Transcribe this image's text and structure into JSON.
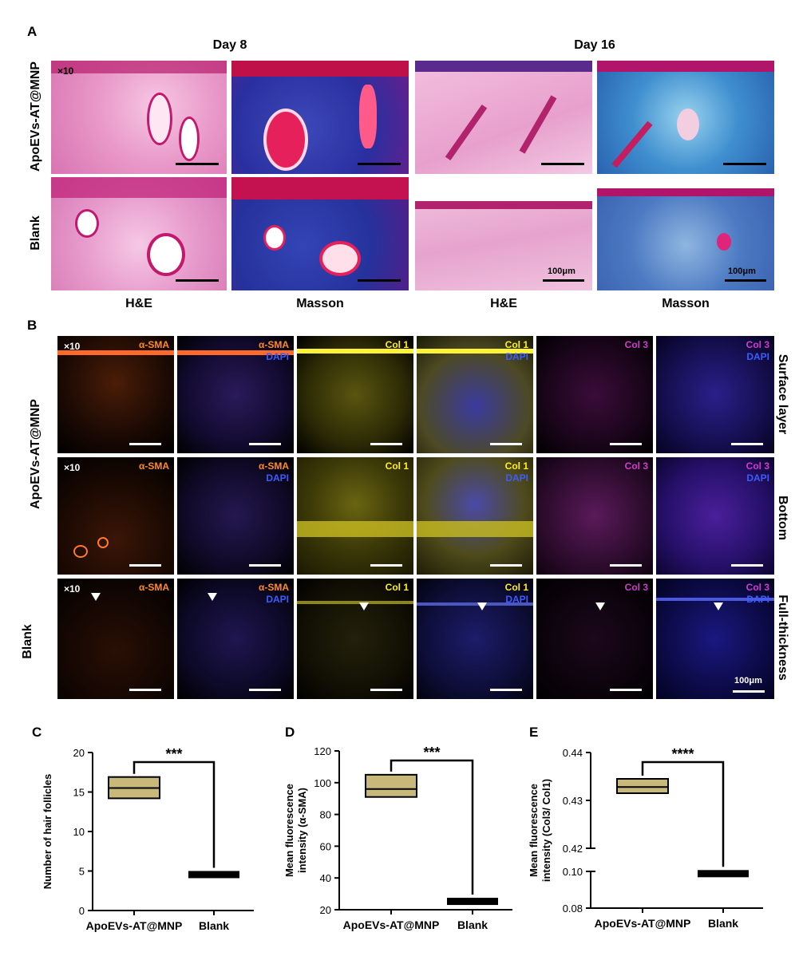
{
  "panelA": {
    "letter": "A",
    "day_headers": [
      "Day 8",
      "Day 16"
    ],
    "row_labels": [
      "ApoEVs-AT@MNP",
      "Blank"
    ],
    "col_labels": [
      "H&E",
      "Masson",
      "H&E",
      "Masson"
    ],
    "magnification": "×10",
    "scale_bar": "100μm"
  },
  "panelB": {
    "letter": "B",
    "magnification": "×10",
    "row_labels": [
      "ApoEVs-AT@MNP",
      "Blank"
    ],
    "side_labels": [
      "Surface layer",
      "Bottom",
      "Full-thickness"
    ],
    "channels": {
      "asma": "α-SMA",
      "col1": "Col 1",
      "col3": "Col 3",
      "dapi": "DAPI"
    },
    "scale_bar": "100μm",
    "colors": {
      "asma": "#ff8a2a",
      "col1": "#ffee22",
      "col3": "#d23ad2",
      "dapi": "#3d5cff"
    }
  },
  "chart_data": [
    {
      "panel": "C",
      "type": "box",
      "categories": [
        "ApoEVs-AT@MNP",
        "Blank"
      ],
      "ylabel": "Number of hair follicles",
      "ylim": [
        0,
        20
      ],
      "yticks": [
        "0",
        "5",
        "10",
        "15",
        "20"
      ],
      "boxes": [
        {
          "category": "ApoEVs-AT@MNP",
          "q1": 14.2,
          "median": 15.5,
          "q3": 16.9,
          "color": "#c8b87a"
        },
        {
          "category": "Blank",
          "q1": 4.2,
          "median": 4.6,
          "q3": 5.0,
          "color": "#000000"
        }
      ],
      "significance": "***"
    },
    {
      "panel": "D",
      "type": "box",
      "categories": [
        "ApoEVs-AT@MNP",
        "Blank"
      ],
      "ylabel": [
        "Mean fluorescence",
        "intensity (α-SMA)"
      ],
      "ylim": [
        20,
        120
      ],
      "yticks": [
        "20",
        "40",
        "60",
        "80",
        "100",
        "120"
      ],
      "boxes": [
        {
          "category": "ApoEVs-AT@MNP",
          "q1": 91,
          "median": 96,
          "q3": 105,
          "color": "#c8b87a"
        },
        {
          "category": "Blank",
          "q1": 24.5,
          "median": 25.5,
          "q3": 27,
          "color": "#000000"
        }
      ],
      "significance": "***"
    },
    {
      "panel": "E",
      "type": "box",
      "categories": [
        "ApoEVs-AT@MNP",
        "Blank"
      ],
      "ylabel": [
        "Mean fluorescence",
        "intensity (Col3/ Col1)"
      ],
      "axis_break": true,
      "yticks": [
        "0.08",
        "0.10",
        "0.42",
        "0.43",
        "0.44"
      ],
      "boxes": [
        {
          "category": "ApoEVs-AT@MNP",
          "q1": 0.4315,
          "median": 0.4328,
          "q3": 0.4345,
          "color": "#c8b87a"
        },
        {
          "category": "Blank",
          "q1": 0.0985,
          "median": 0.099,
          "q3": 0.0995,
          "color": "#000000"
        }
      ],
      "significance": "****"
    }
  ]
}
